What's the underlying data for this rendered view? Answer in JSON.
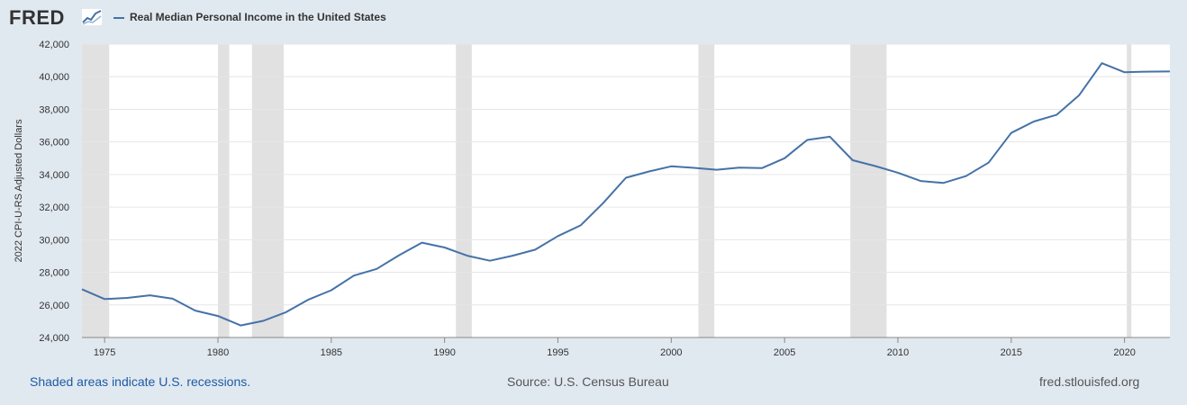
{
  "brand": {
    "logo_text": "FRED",
    "logo_icon": "chart-line-icon"
  },
  "colors": {
    "background": "#e1e9f0",
    "plot_background": "#ffffff",
    "series": "#4572a7",
    "recession": "#e1e1e1",
    "grid": "#e6e6e6",
    "link": "#1d5aa5"
  },
  "legend": {
    "label": "Real Median Personal Income in the United States"
  },
  "footer": {
    "left": "Shaded areas indicate U.S. recessions.",
    "center": "Source: U.S. Census Bureau",
    "right": "fred.stlouisfed.org"
  },
  "chart_data": {
    "type": "line",
    "ylabel": "2022 CPI-U-RS Adjusted Dollars",
    "xlim": [
      1974,
      2022
    ],
    "ylim": [
      24000,
      42000
    ],
    "y_ticks": [
      24000,
      26000,
      28000,
      30000,
      32000,
      34000,
      36000,
      38000,
      40000,
      42000
    ],
    "y_tick_labels": [
      "24,000",
      "26,000",
      "28,000",
      "30,000",
      "32,000",
      "34,000",
      "36,000",
      "38,000",
      "40,000",
      "42,000"
    ],
    "x_ticks": [
      1975,
      1980,
      1985,
      1990,
      1995,
      2000,
      2005,
      2010,
      2015,
      2020
    ],
    "x_tick_labels": [
      "1975",
      "1980",
      "1985",
      "1990",
      "1995",
      "2000",
      "2005",
      "2010",
      "2015",
      "2020"
    ],
    "grid": "horizontal",
    "recessions": [
      [
        1973.9,
        1975.2
      ],
      [
        1980.0,
        1980.5
      ],
      [
        1981.5,
        1982.9
      ],
      [
        1990.5,
        1991.2
      ],
      [
        2001.2,
        2001.9
      ],
      [
        2007.9,
        2009.5
      ],
      [
        2020.1,
        2020.3
      ]
    ],
    "series": [
      {
        "name": "Real Median Personal Income in the United States",
        "x": [
          1974,
          1975,
          1976,
          1977,
          1978,
          1979,
          1980,
          1981,
          1982,
          1983,
          1984,
          1985,
          1986,
          1987,
          1988,
          1989,
          1990,
          1991,
          1992,
          1993,
          1994,
          1995,
          1996,
          1997,
          1998,
          1999,
          2000,
          2001,
          2002,
          2003,
          2004,
          2005,
          2006,
          2007,
          2008,
          2009,
          2010,
          2011,
          2012,
          2013,
          2014,
          2015,
          2016,
          2017,
          2018,
          2019,
          2020,
          2021,
          2022
        ],
        "values": [
          26960,
          26360,
          26430,
          26590,
          26380,
          25650,
          25320,
          24740,
          25020,
          25550,
          26330,
          26900,
          27800,
          28210,
          29050,
          29820,
          29520,
          29020,
          28710,
          29020,
          29390,
          30220,
          30880,
          32250,
          33800,
          34180,
          34500,
          34410,
          34290,
          34420,
          34390,
          35000,
          36120,
          36320,
          34880,
          34520,
          34110,
          33600,
          33480,
          33900,
          34730,
          36550,
          37250,
          37660,
          38870,
          40830,
          40270,
          40310,
          40320
        ]
      }
    ]
  }
}
